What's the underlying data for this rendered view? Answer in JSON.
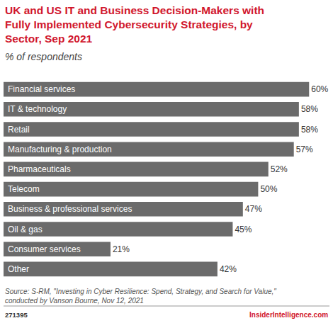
{
  "chart_data": {
    "type": "bar",
    "orientation": "horizontal",
    "title": "UK and US IT and Business Decision-Makers with Fully Implemented Cybersecurity Strategies, by Sector, Sep 2021",
    "subtitle": "% of respondents",
    "categories": [
      "Financial services",
      "IT & technology",
      "Retail",
      "Manufacturing & production",
      "Pharmaceuticals",
      "Telecom",
      "Business & professional services",
      "Oil & gas",
      "Consumer services",
      "Other"
    ],
    "values": [
      60,
      58,
      58,
      57,
      52,
      50,
      47,
      45,
      21,
      42
    ],
    "value_labels": [
      "60%",
      "58%",
      "58%",
      "57%",
      "52%",
      "50%",
      "47%",
      "45%",
      "21%",
      "42%"
    ],
    "color": "#6b6b6b",
    "xlim": [
      0,
      64
    ],
    "data_labels": true,
    "tick_labels": false,
    "grid": false,
    "annotations": [
      "Source: S-RM, \"Investing in Cyber Resilience: Spend, Strategy, and Search for Value,\" conducted by Vanson Bourne, Nov 12, 2021",
      "271395",
      "InsiderIntelligence.com"
    ]
  }
}
